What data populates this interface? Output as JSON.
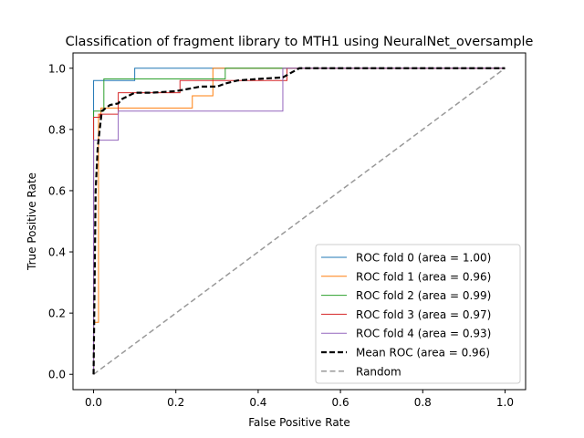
{
  "chart_data": {
    "type": "line",
    "title": "Classification of fragment library to MTH1 using NeuralNet_oversample",
    "xlabel": "False Positive Rate",
    "ylabel": "True Positive Rate",
    "xlim": [
      -0.05,
      1.05
    ],
    "ylim": [
      -0.05,
      1.05
    ],
    "xticks": [
      "0.0",
      "0.2",
      "0.4",
      "0.6",
      "0.8",
      "1.0"
    ],
    "yticks": [
      "0.0",
      "0.2",
      "0.4",
      "0.6",
      "0.8",
      "1.0"
    ],
    "grid": false,
    "legend_position": "lower-right",
    "series": [
      {
        "name": "ROC fold 0 (area = 1.00)",
        "color": "#1f77b4",
        "style": "solid",
        "x": [
          0,
          0,
          0.1,
          0.1,
          1.0
        ],
        "y": [
          0,
          0.96,
          0.96,
          1.0,
          1.0
        ]
      },
      {
        "name": "ROC fold 1 (area = 0.96)",
        "color": "#ff7f0e",
        "style": "solid",
        "x": [
          0,
          0,
          0.012,
          0.012,
          0.018,
          0.018,
          0.24,
          0.24,
          0.29,
          0.29,
          1.0
        ],
        "y": [
          0,
          0.17,
          0.17,
          0.85,
          0.85,
          0.87,
          0.87,
          0.91,
          0.91,
          1.0,
          1.0
        ]
      },
      {
        "name": "ROC fold 2 (area = 0.99)",
        "color": "#2ca02c",
        "style": "solid",
        "x": [
          0,
          0,
          0.025,
          0.025,
          0.32,
          0.32,
          1.0
        ],
        "y": [
          0,
          0.86,
          0.86,
          0.965,
          0.965,
          1.0,
          1.0
        ]
      },
      {
        "name": "ROC fold 3 (area = 0.97)",
        "color": "#d62728",
        "style": "solid",
        "x": [
          0,
          0,
          0.015,
          0.015,
          0.06,
          0.06,
          0.21,
          0.21,
          0.3,
          0.3,
          0.47,
          0.47,
          1.0
        ],
        "y": [
          0,
          0.84,
          0.84,
          0.85,
          0.85,
          0.92,
          0.92,
          0.96,
          0.96,
          0.96,
          0.96,
          1.0,
          1.0
        ]
      },
      {
        "name": "ROC fold 4 (area = 0.93)",
        "color": "#9467bd",
        "style": "solid",
        "x": [
          0,
          0,
          0.06,
          0.06,
          0.46,
          0.46,
          1.0
        ],
        "y": [
          0,
          0.765,
          0.765,
          0.86,
          0.86,
          1.0,
          1.0
        ]
      },
      {
        "name": "Mean ROC (area = 0.96)",
        "color": "#000000",
        "style": "dashed-bold",
        "x": [
          0,
          0.005,
          0.01,
          0.02,
          0.04,
          0.06,
          0.07,
          0.1,
          0.14,
          0.2,
          0.24,
          0.26,
          0.3,
          0.32,
          0.35,
          0.4,
          0.46,
          0.5,
          0.6,
          1.0
        ],
        "y": [
          0,
          0.6,
          0.74,
          0.86,
          0.88,
          0.885,
          0.9,
          0.92,
          0.92,
          0.925,
          0.935,
          0.94,
          0.94,
          0.95,
          0.96,
          0.965,
          0.97,
          1.0,
          1.0,
          1.0
        ]
      },
      {
        "name": "Random",
        "color": "#999999",
        "style": "dashed",
        "x": [
          0,
          1
        ],
        "y": [
          0,
          1
        ]
      }
    ]
  }
}
